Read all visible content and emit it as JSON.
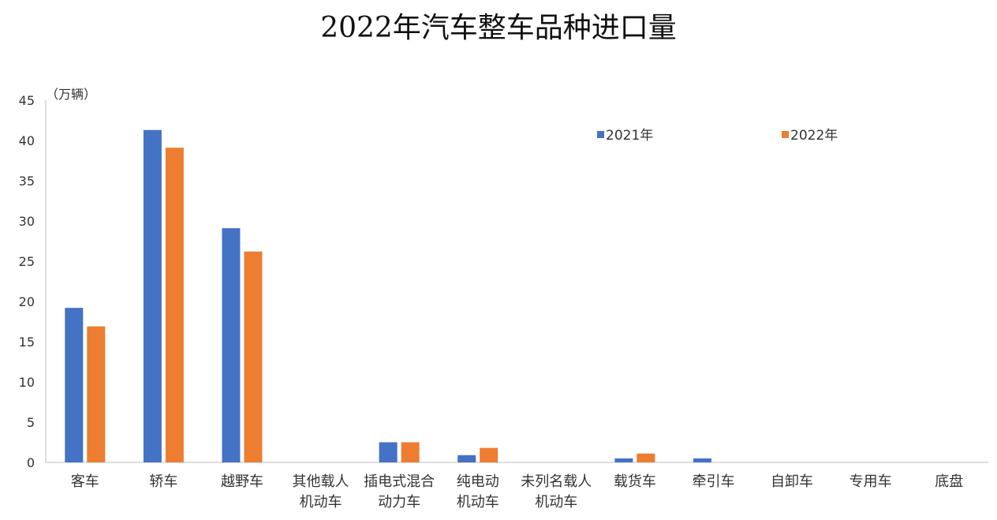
{
  "chart_data": {
    "type": "bar",
    "title": "2022年汽车整车品种进口量",
    "unit_label": "（万辆）",
    "categories": [
      [
        "客车"
      ],
      [
        "轿车"
      ],
      [
        "越野车"
      ],
      [
        "其他载人",
        "机动车"
      ],
      [
        "插电式混合",
        "动力车"
      ],
      [
        "纯电动",
        "机动车"
      ],
      [
        "未列名载人",
        "机动车"
      ],
      [
        "载货车"
      ],
      [
        "牵引车"
      ],
      [
        "自卸车"
      ],
      [
        "专用车"
      ],
      [
        "底盘"
      ]
    ],
    "series": [
      {
        "name": "2021年",
        "color": "#4472C4",
        "values": [
          19.2,
          41.3,
          29.1,
          0,
          2.5,
          0.9,
          0,
          0.5,
          0.5,
          0,
          0,
          0
        ]
      },
      {
        "name": "2022年",
        "color": "#ED7D31",
        "values": [
          16.9,
          39.1,
          26.2,
          0,
          2.5,
          1.8,
          0,
          1.1,
          0,
          0,
          0,
          0
        ]
      }
    ],
    "ylim": [
      0,
      45
    ],
    "yticks": [
      0,
      5,
      10,
      15,
      20,
      25,
      30,
      35,
      40,
      45
    ],
    "grid": false,
    "legend_position": "top-right"
  }
}
